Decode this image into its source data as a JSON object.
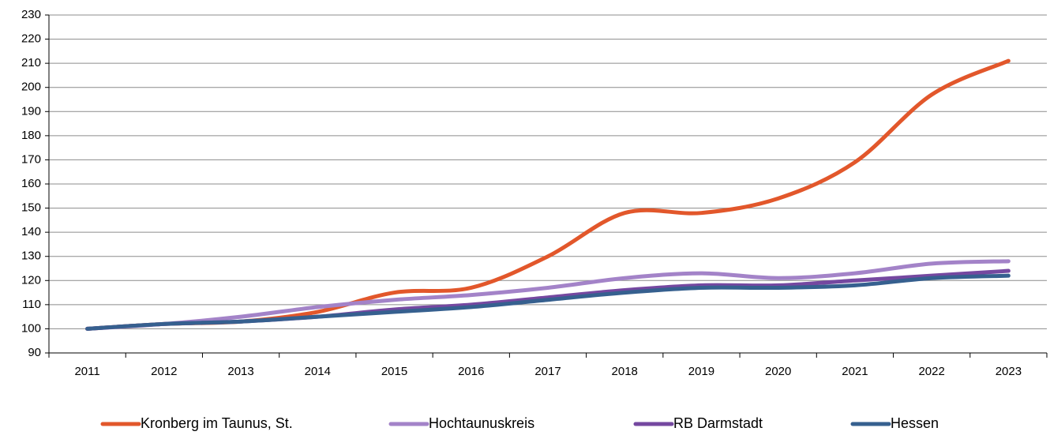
{
  "chart_data": {
    "type": "line",
    "categories": [
      "2011",
      "2012",
      "2013",
      "2014",
      "2015",
      "2016",
      "2017",
      "2018",
      "2019",
      "2020",
      "2021",
      "2022",
      "2023"
    ],
    "series": [
      {
        "name": "Kronberg im Taunus, St.",
        "color": "#e2572b",
        "values": [
          100,
          102,
          103,
          107,
          115,
          117,
          130,
          148,
          148,
          154,
          169,
          197,
          211
        ]
      },
      {
        "name": "Hochtaunuskreis",
        "color": "#a383c8",
        "values": [
          100,
          102,
          105,
          109,
          112,
          114,
          117,
          121,
          123,
          121,
          123,
          127,
          128
        ]
      },
      {
        "name": "RB Darmstadt",
        "color": "#7548a0",
        "values": [
          100,
          102,
          103,
          105,
          108,
          110,
          113,
          116,
          118,
          118,
          120,
          122,
          124
        ]
      },
      {
        "name": "Hessen",
        "color": "#36608f",
        "values": [
          100,
          102,
          103,
          105,
          107,
          109,
          112,
          115,
          117,
          117,
          118,
          121,
          122
        ]
      }
    ],
    "ylim": [
      90,
      230
    ],
    "yticks": [
      90,
      100,
      110,
      120,
      130,
      140,
      150,
      160,
      170,
      180,
      190,
      200,
      210,
      220,
      230
    ],
    "grid": true,
    "legend": "bottom"
  }
}
